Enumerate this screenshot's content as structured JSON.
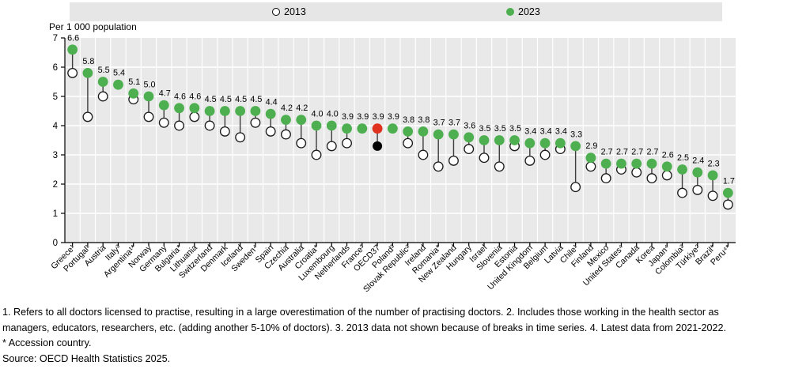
{
  "legend": {
    "items": [
      {
        "label": "2013",
        "marker": "open-circle-marker"
      },
      {
        "label": "2023",
        "marker": "filled-circle-marker"
      }
    ]
  },
  "chart_data": {
    "type": "scatter",
    "subtype": "lollipop-dumbbell",
    "title": "",
    "xlabel": "",
    "ylabel": "Per 1 000 population",
    "ylim": [
      0,
      7
    ],
    "yticks": [
      0,
      1,
      2,
      3,
      4,
      5,
      6,
      7
    ],
    "grid": true,
    "legend_position": "top",
    "categories": [
      "Greece¹",
      "Portugal¹",
      "Austria",
      "Italy³",
      "Argentina¹*",
      "Norway",
      "Germany",
      "Bulgaria*",
      "Lithuania",
      "Switzerland",
      "Denmark",
      "Iceland",
      "Sweden⁴",
      "Spain",
      "Czechia",
      "Australia",
      "Croatia*",
      "Luxembourg",
      "Netherlands",
      "France³",
      "OECD37",
      "Poland³",
      "Slovak Republic²",
      "Ireland",
      "Romania*",
      "New Zealand",
      "Hungary",
      "Israel",
      "Slovenia",
      "Estonia",
      "United Kingdom",
      "Belgium",
      "Latvia",
      "Chile¹",
      "Finland",
      "Mexico",
      "United States⁴",
      "Canada",
      "Korea",
      "Japan⁴",
      "Colombia²",
      "Türkiye²",
      "Brazil*",
      "Peru⁴*"
    ],
    "series": [
      {
        "name": "2013",
        "style": "open-circle",
        "values": [
          5.8,
          4.3,
          5.0,
          null,
          4.9,
          4.3,
          4.1,
          4.0,
          4.3,
          4.0,
          3.8,
          3.6,
          4.1,
          3.8,
          3.7,
          3.4,
          3.0,
          3.3,
          3.4,
          null,
          3.3,
          null,
          3.4,
          3.0,
          2.6,
          2.8,
          3.2,
          2.9,
          2.6,
          3.3,
          2.8,
          3.0,
          3.2,
          1.9,
          2.6,
          2.2,
          2.5,
          2.4,
          2.2,
          2.3,
          1.7,
          1.8,
          1.6,
          1.3
        ]
      },
      {
        "name": "2023",
        "style": "filled-circle",
        "color": "#4daf50",
        "values": [
          6.6,
          5.8,
          5.5,
          5.4,
          5.1,
          5.0,
          4.7,
          4.6,
          4.6,
          4.5,
          4.5,
          4.5,
          4.5,
          4.4,
          4.2,
          4.2,
          4.0,
          4.0,
          3.9,
          3.9,
          3.9,
          3.9,
          3.8,
          3.8,
          3.7,
          3.7,
          3.6,
          3.5,
          3.5,
          3.5,
          3.4,
          3.4,
          3.4,
          3.3,
          2.9,
          2.7,
          2.7,
          2.7,
          2.7,
          2.6,
          2.5,
          2.4,
          2.3,
          1.7
        ]
      }
    ],
    "highlight": {
      "index": 20,
      "label": "OECD37",
      "color_2023": "#e0301e",
      "color_2013": "#000000"
    }
  },
  "footnotes": {
    "lines": [
      "1. Refers to all doctors licensed to practise, resulting in a large overestimation of the number of practising doctors. 2. Includes those working in the health sector as",
      "managers, educators, researchers, etc. (adding another 5-10% of doctors). 3. 2013 data not shown because of breaks in time series. 4. Latest data from 2021-2022.",
      "* Accession country.",
      "Source: OECD Health Statistics 2025."
    ]
  },
  "colors": {
    "green_2023": "#4daf50",
    "red_oecd_2023": "#e0301e",
    "black_oecd_2013": "#000000",
    "plot_background": "#e9e9e9",
    "legend_background": "#e6e6e6",
    "gridline": "#ffffff",
    "stem": "#3c3c3c",
    "axis": "#000000"
  }
}
